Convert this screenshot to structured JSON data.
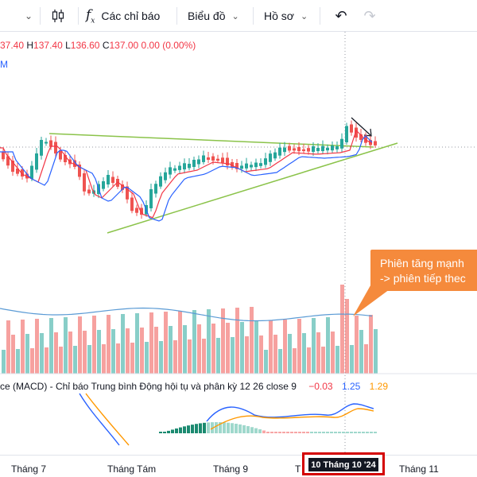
{
  "toolbar": {
    "indicators_label": "Các chỉ báo",
    "layout_label": "Biểu đồ",
    "profile_label": "Hồ sơ",
    "caret_icon": "chevron-down-icon",
    "candle_icon": "candlestick-icon",
    "fx_icon": "fx-icon",
    "undo_icon": "undo-icon",
    "redo_icon": "redo-icon"
  },
  "legend": {
    "open": "37.40",
    "high_key": "H",
    "high": "137.40",
    "low_key": "L",
    "low": "136.60",
    "close_key": "C",
    "close": "137.00",
    "change": "0.00 (0.00%)",
    "line2": "M"
  },
  "macd": {
    "label": "ce (MACD) - Chỉ báo Trung bình Động hội tụ và phân kỳ",
    "params": "12 26 close 9",
    "hist": "−0.03",
    "macd": "1.25",
    "signal": "1.29"
  },
  "time_axis": {
    "ticks": [
      "Tháng 7",
      "Tháng Tám",
      "Tháng 9",
      "T",
      "Tháng 11"
    ],
    "cursor_label": "10 Tháng 10 '24"
  },
  "annotation": {
    "line1": "Phiên tăng mạnh",
    "line2": "-> phiên tiếp thec"
  },
  "colors": {
    "up": "#26a69a",
    "down": "#ef5350",
    "ma": "#2962ff",
    "ma_fast": "#f23645",
    "trendline": "#8bc34a",
    "signal": "#ff9800",
    "callout": "#f58a3c",
    "highlight_box": "#d40000"
  }
}
